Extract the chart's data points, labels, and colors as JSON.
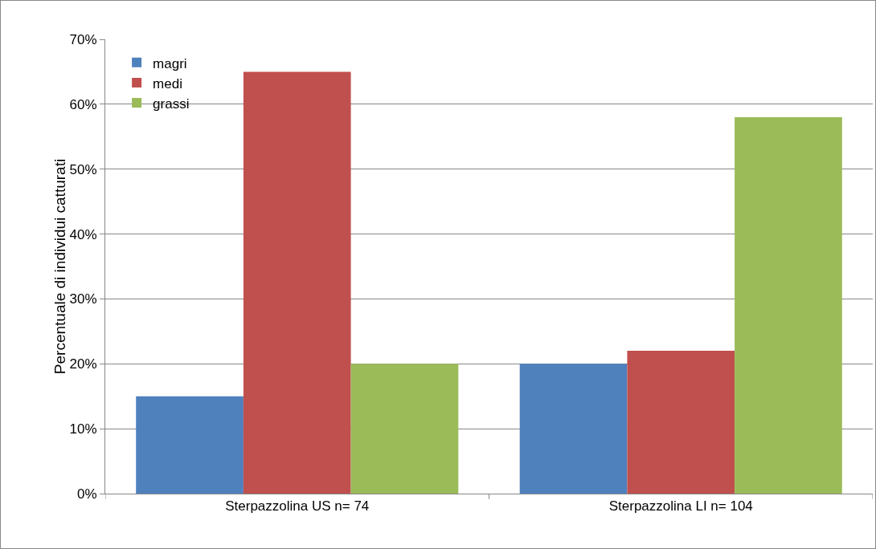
{
  "chart_data": {
    "type": "bar",
    "ylabel": "Percentuale di individui catturati",
    "categories": [
      "Sterpazzolina US n= 74",
      "Sterpazzolina LI n= 104"
    ],
    "series": [
      {
        "name": "magri",
        "color": "#4f81bd",
        "values": [
          15,
          20
        ]
      },
      {
        "name": "medi",
        "color": "#c0504d",
        "values": [
          65,
          22
        ]
      },
      {
        "name": "grassi",
        "color": "#9bbb59",
        "values": [
          20,
          58
        ]
      }
    ],
    "ylim": [
      0,
      70
    ],
    "yticks": [
      {
        "value": 0,
        "label": "0%"
      },
      {
        "value": 10,
        "label": "10%"
      },
      {
        "value": 20,
        "label": "20%"
      },
      {
        "value": 30,
        "label": "30%"
      },
      {
        "value": 40,
        "label": "40%"
      },
      {
        "value": 50,
        "label": "50%"
      },
      {
        "value": 60,
        "label": "60%"
      },
      {
        "value": 70,
        "label": "70%"
      }
    ],
    "grid": "y",
    "legend": "top left"
  }
}
